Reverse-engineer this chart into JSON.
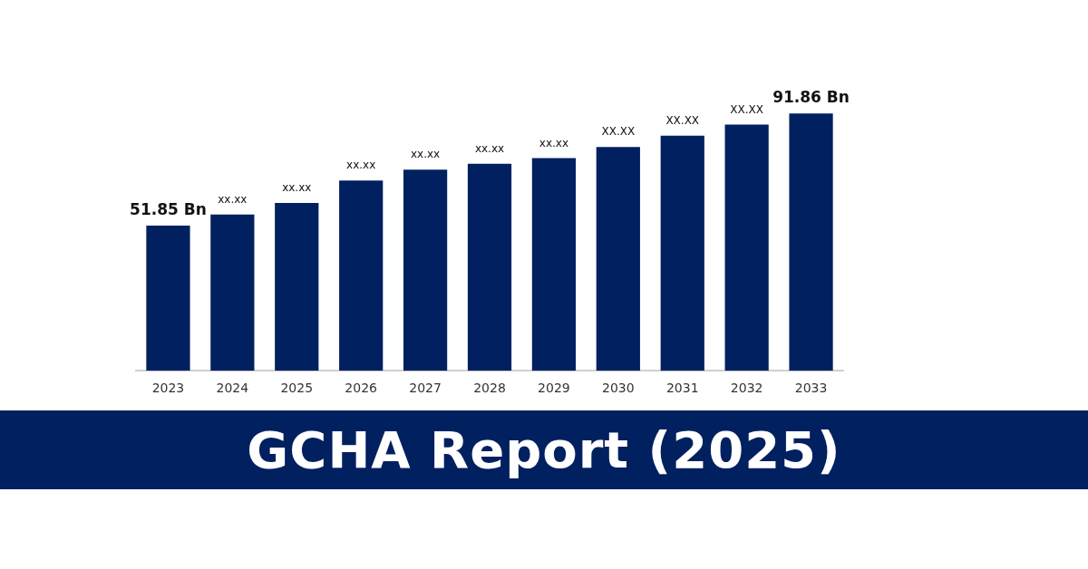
{
  "chart_data": {
    "type": "bar",
    "title": "GCHA Report (2025)",
    "categories": [
      "2023",
      "2024",
      "2025",
      "2026",
      "2027",
      "2028",
      "2029",
      "2030",
      "2031",
      "2032",
      "2033"
    ],
    "values": [
      51.85,
      55.8,
      59.9,
      67.9,
      71.8,
      73.9,
      75.9,
      79.9,
      83.9,
      87.9,
      91.86
    ],
    "value_labels": [
      "51.85 Bn",
      "xx.xx",
      "xx.xx",
      "xx.xx",
      "xx.xx",
      "xx.xx",
      "xx.xx",
      "XX.XX",
      "XX.XX",
      "XX.XX",
      "91.86 Bn"
    ],
    "color": "#002060",
    "tick_labels": "x",
    "grid": false
  }
}
